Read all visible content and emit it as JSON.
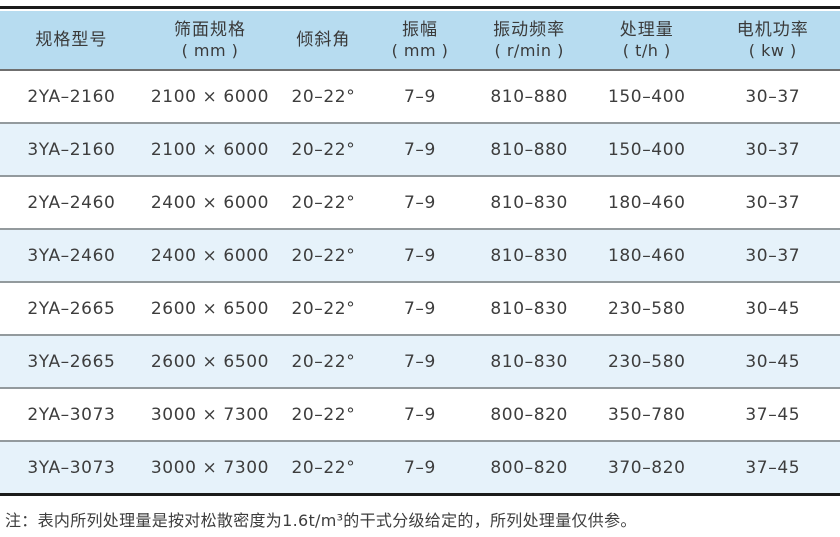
{
  "table": {
    "columns": [
      {
        "title": "规格型号",
        "unit": ""
      },
      {
        "title": "筛面规格",
        "unit": "( mm )"
      },
      {
        "title": "倾斜角",
        "unit": ""
      },
      {
        "title": "振幅",
        "unit": "( mm )"
      },
      {
        "title": "振动频率",
        "unit": "( r/min )"
      },
      {
        "title": "处理量",
        "unit": "( t/h )"
      },
      {
        "title": "电机功率",
        "unit": "( kw )"
      }
    ],
    "rows": [
      [
        "2YA–2160",
        "2100 × 6000",
        "20–22°",
        "7–9",
        "810–880",
        "150–400",
        "30–37"
      ],
      [
        "3YA–2160",
        "2100 × 6000",
        "20–22°",
        "7–9",
        "810–880",
        "150–400",
        "30–37"
      ],
      [
        "2YA–2460",
        "2400 × 6000",
        "20–22°",
        "7–9",
        "810–830",
        "180–460",
        "30–37"
      ],
      [
        "3YA–2460",
        "2400 × 6000",
        "20–22°",
        "7–9",
        "810–830",
        "180–460",
        "30–37"
      ],
      [
        "2YA–2665",
        "2600 × 6500",
        "20–22°",
        "7–9",
        "810–830",
        "230–580",
        "30–45"
      ],
      [
        "3YA–2665",
        "2600 × 6500",
        "20–22°",
        "7–9",
        "810–830",
        "230–580",
        "30–45"
      ],
      [
        "2YA–3073",
        "3000 × 7300",
        "20–22°",
        "7–9",
        "800–820",
        "350–780",
        "37–45"
      ],
      [
        "3YA–3073",
        "3000 × 7300",
        "20–22°",
        "7–9",
        "800–820",
        "370–820",
        "37–45"
      ]
    ]
  },
  "note": "注：表内所列处理量是按对松散密度为1.6t/m³的干式分级给定的，所列处理量仅供参。",
  "colors": {
    "header_bg": "#b7dcf0",
    "stripe_bg": "#e6f2fa",
    "heavy_rule": "#1b1b1b",
    "row_separator": "#939a9d",
    "text": "#3d3d3d"
  }
}
